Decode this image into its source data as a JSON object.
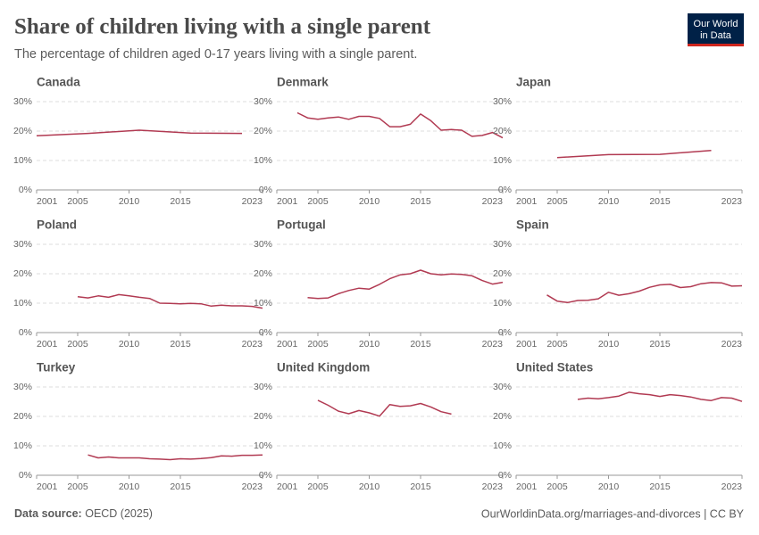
{
  "header": {
    "title": "Share of children living with a single parent",
    "subtitle": "The percentage of children aged 0-17 years living with a single parent.",
    "logo": [
      "Our World",
      "in Data"
    ]
  },
  "footer": {
    "source_label": "Data source:",
    "source": "OECD (2025)",
    "url": "OurWorldinData.org/marriages-and-divorces | CC BY"
  },
  "chart_data": [
    {
      "type": "line",
      "title": "Canada",
      "color": "#b13a52",
      "x": [
        2001,
        2006,
        2011,
        2016,
        2021
      ],
      "values": [
        18.4,
        19.2,
        20.3,
        19.3,
        19.2
      ],
      "xlim": [
        2001,
        2023
      ],
      "xticks": [
        2001,
        2005,
        2010,
        2015,
        2023
      ],
      "ylim": [
        0,
        30
      ],
      "yticks": [
        {
          "value": 0,
          "label": "0%"
        },
        {
          "value": 10,
          "label": "10%"
        },
        {
          "value": 20,
          "label": "20%"
        },
        {
          "value": 30,
          "label": "30%"
        }
      ]
    },
    {
      "type": "line",
      "title": "Denmark",
      "color": "#b13a52",
      "x": [
        2003,
        2004,
        2005,
        2006,
        2007,
        2008,
        2009,
        2010,
        2011,
        2012,
        2013,
        2014,
        2015,
        2016,
        2017,
        2018,
        2019,
        2020,
        2021,
        2022,
        2023
      ],
      "values": [
        26.2,
        24.5,
        24,
        24.5,
        24.8,
        24,
        25,
        25,
        24.3,
        21.5,
        21.5,
        22.3,
        25.8,
        23.5,
        20.3,
        20.5,
        20.3,
        18.2,
        18.5,
        19.5,
        17.7
      ],
      "xlim": [
        2001,
        2023
      ],
      "xticks": [
        2001,
        2005,
        2010,
        2015,
        2023
      ],
      "ylim": [
        0,
        30
      ],
      "yticks": [
        {
          "value": 0,
          "label": "0%"
        },
        {
          "value": 10,
          "label": "10%"
        },
        {
          "value": 20,
          "label": "20%"
        },
        {
          "value": 30,
          "label": "30%"
        }
      ]
    },
    {
      "type": "line",
      "title": "Japan",
      "color": "#b13a52",
      "x": [
        2005,
        2010,
        2015,
        2020
      ],
      "values": [
        11,
        12,
        12.1,
        13.4
      ],
      "xlim": [
        2001,
        2023
      ],
      "xticks": [
        2001,
        2005,
        2010,
        2015,
        2023
      ],
      "ylim": [
        0,
        30
      ],
      "yticks": [
        {
          "value": 0,
          "label": "0%"
        },
        {
          "value": 10,
          "label": "10%"
        },
        {
          "value": 20,
          "label": "20%"
        },
        {
          "value": 30,
          "label": "30%"
        }
      ]
    },
    {
      "type": "line",
      "title": "Poland",
      "color": "#b13a52",
      "x": [
        2005,
        2006,
        2007,
        2008,
        2009,
        2010,
        2011,
        2012,
        2013,
        2014,
        2015,
        2016,
        2017,
        2018,
        2019,
        2020,
        2021,
        2022,
        2023
      ],
      "values": [
        12.2,
        11.8,
        12.5,
        12,
        12.9,
        12.5,
        12,
        11.6,
        10,
        9.9,
        9.8,
        9.9,
        9.8,
        9,
        9.3,
        9.1,
        9.1,
        8.9,
        8.3
      ],
      "xlim": [
        2001,
        2023
      ],
      "xticks": [
        2001,
        2005,
        2010,
        2015,
        2023
      ],
      "ylim": [
        0,
        30
      ],
      "yticks": [
        {
          "value": 0,
          "label": "0%"
        },
        {
          "value": 10,
          "label": "10%"
        },
        {
          "value": 20,
          "label": "20%"
        },
        {
          "value": 30,
          "label": "30%"
        }
      ]
    },
    {
      "type": "line",
      "title": "Portugal",
      "color": "#b13a52",
      "x": [
        2004,
        2005,
        2006,
        2007,
        2008,
        2009,
        2010,
        2011,
        2012,
        2013,
        2014,
        2015,
        2016,
        2017,
        2018,
        2019,
        2020,
        2021,
        2022,
        2023
      ],
      "values": [
        11.9,
        11.6,
        11.8,
        13.2,
        14.3,
        15.1,
        14.8,
        16.4,
        18.3,
        19.6,
        20,
        21.2,
        20,
        19.6,
        19.9,
        19.8,
        19.3,
        17.7,
        16.5,
        17.1
      ],
      "xlim": [
        2001,
        2023
      ],
      "xticks": [
        2001,
        2005,
        2010,
        2015,
        2023
      ],
      "ylim": [
        0,
        30
      ],
      "yticks": [
        {
          "value": 0,
          "label": "0%"
        },
        {
          "value": 10,
          "label": "10%"
        },
        {
          "value": 20,
          "label": "20%"
        },
        {
          "value": 30,
          "label": "30%"
        }
      ]
    },
    {
      "type": "line",
      "title": "Spain",
      "color": "#b13a52",
      "x": [
        2004,
        2005,
        2006,
        2007,
        2008,
        2009,
        2010,
        2011,
        2012,
        2013,
        2014,
        2015,
        2016,
        2017,
        2018,
        2019,
        2020,
        2021,
        2022,
        2023
      ],
      "values": [
        12.8,
        10.7,
        10.2,
        10.9,
        11,
        11.5,
        13.7,
        12.7,
        13.2,
        14.1,
        15.4,
        16.2,
        16.4,
        15.3,
        15.6,
        16.6,
        17,
        16.9,
        15.8,
        15.9
      ],
      "xlim": [
        2001,
        2023
      ],
      "xticks": [
        2001,
        2005,
        2010,
        2015,
        2023
      ],
      "ylim": [
        0,
        30
      ],
      "yticks": [
        {
          "value": 0,
          "label": "0%"
        },
        {
          "value": 10,
          "label": "10%"
        },
        {
          "value": 20,
          "label": "20%"
        },
        {
          "value": 30,
          "label": "30%"
        }
      ]
    },
    {
      "type": "line",
      "title": "Turkey",
      "color": "#b13a52",
      "x": [
        2006,
        2007,
        2008,
        2009,
        2010,
        2011,
        2012,
        2013,
        2014,
        2015,
        2016,
        2017,
        2018,
        2019,
        2020,
        2021,
        2022,
        2023
      ],
      "values": [
        6.9,
        5.9,
        6.2,
        5.9,
        5.9,
        5.9,
        5.6,
        5.5,
        5.3,
        5.6,
        5.5,
        5.7,
        6,
        6.6,
        6.5,
        6.8,
        6.8,
        6.9
      ],
      "xlim": [
        2001,
        2023
      ],
      "xticks": [
        2001,
        2005,
        2010,
        2015,
        2023
      ],
      "ylim": [
        0,
        30
      ],
      "yticks": [
        {
          "value": 0,
          "label": "0%"
        },
        {
          "value": 10,
          "label": "10%"
        },
        {
          "value": 20,
          "label": "20%"
        },
        {
          "value": 30,
          "label": "30%"
        }
      ]
    },
    {
      "type": "line",
      "title": "United Kingdom",
      "color": "#b13a52",
      "x": [
        2005,
        2006,
        2007,
        2008,
        2009,
        2010,
        2011,
        2012,
        2013,
        2014,
        2015,
        2016,
        2017,
        2018
      ],
      "values": [
        25.5,
        23.8,
        21.8,
        20.9,
        22,
        21.2,
        20.1,
        24,
        23.4,
        23.6,
        24.4,
        23.2,
        21.6,
        20.8
      ],
      "xlim": [
        2001,
        2023
      ],
      "xticks": [
        2001,
        2005,
        2010,
        2015,
        2023
      ],
      "ylim": [
        0,
        30
      ],
      "yticks": [
        {
          "value": 0,
          "label": "0%"
        },
        {
          "value": 10,
          "label": "10%"
        },
        {
          "value": 20,
          "label": "20%"
        },
        {
          "value": 30,
          "label": "30%"
        }
      ]
    },
    {
      "type": "line",
      "title": "United States",
      "color": "#b13a52",
      "x": [
        2007,
        2008,
        2009,
        2010,
        2011,
        2012,
        2013,
        2014,
        2015,
        2016,
        2017,
        2018,
        2019,
        2020,
        2021,
        2022,
        2023
      ],
      "values": [
        25.8,
        26.2,
        26,
        26.4,
        26.9,
        28.2,
        27.7,
        27.4,
        26.8,
        27.4,
        27.1,
        26.6,
        25.8,
        25.4,
        26.4,
        26.2,
        25.1
      ],
      "xlim": [
        2001,
        2023
      ],
      "xticks": [
        2001,
        2005,
        2010,
        2015,
        2023
      ],
      "ylim": [
        0,
        30
      ],
      "yticks": [
        {
          "value": 0,
          "label": "0%"
        },
        {
          "value": 10,
          "label": "10%"
        },
        {
          "value": 20,
          "label": "20%"
        },
        {
          "value": 30,
          "label": "30%"
        }
      ]
    }
  ]
}
